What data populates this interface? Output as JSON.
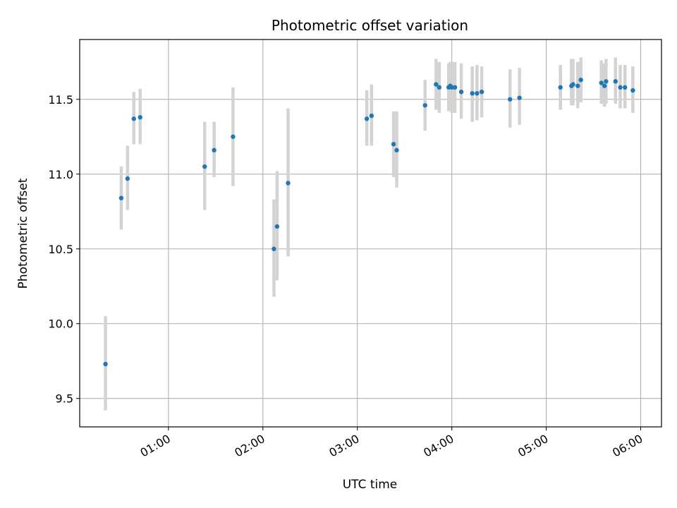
{
  "chart_data": {
    "type": "scatter",
    "title": "Photometric offset variation",
    "xlabel": "UTC time",
    "ylabel": "Photometric offset",
    "x_tick_labels": [
      "01:00",
      "02:00",
      "03:00",
      "04:00",
      "05:00",
      "06:00"
    ],
    "y_tick_labels": [
      "9.5",
      "10.0",
      "10.5",
      "11.0",
      "11.5"
    ],
    "x_ticks_hours": [
      1,
      2,
      3,
      4,
      5,
      6
    ],
    "y_ticks": [
      9.5,
      10.0,
      10.5,
      11.0,
      11.5
    ],
    "xlim_hours": [
      0.06,
      6.22
    ],
    "ylim": [
      9.31,
      11.9
    ],
    "grid": true,
    "marker_color": "#1f77b4",
    "errorbar_color": "#d3d3d3",
    "points": [
      {
        "t": "00:20",
        "y": 9.73,
        "lo": 9.42,
        "hi": 10.05
      },
      {
        "t": "00:30",
        "y": 10.84,
        "lo": 10.63,
        "hi": 11.05
      },
      {
        "t": "00:34",
        "y": 10.97,
        "lo": 10.76,
        "hi": 11.19
      },
      {
        "t": "00:38",
        "y": 11.37,
        "lo": 11.2,
        "hi": 11.55
      },
      {
        "t": "00:42",
        "y": 11.38,
        "lo": 11.2,
        "hi": 11.57
      },
      {
        "t": "01:23",
        "y": 11.05,
        "lo": 10.76,
        "hi": 11.35
      },
      {
        "t": "01:29",
        "y": 11.16,
        "lo": 10.98,
        "hi": 11.35
      },
      {
        "t": "01:41",
        "y": 11.25,
        "lo": 10.92,
        "hi": 11.58
      },
      {
        "t": "02:07",
        "y": 10.5,
        "lo": 10.18,
        "hi": 10.83
      },
      {
        "t": "02:09",
        "y": 10.65,
        "lo": 10.29,
        "hi": 11.02
      },
      {
        "t": "02:16",
        "y": 10.94,
        "lo": 10.45,
        "hi": 11.44
      },
      {
        "t": "03:06",
        "y": 11.37,
        "lo": 11.19,
        "hi": 11.56
      },
      {
        "t": "03:09",
        "y": 11.39,
        "lo": 11.19,
        "hi": 11.6
      },
      {
        "t": "03:23",
        "y": 11.2,
        "lo": 10.98,
        "hi": 11.42
      },
      {
        "t": "03:25",
        "y": 11.16,
        "lo": 10.91,
        "hi": 11.42
      },
      {
        "t": "03:43",
        "y": 11.46,
        "lo": 11.29,
        "hi": 11.63
      },
      {
        "t": "03:50",
        "y": 11.6,
        "lo": 11.43,
        "hi": 11.77
      },
      {
        "t": "03:52",
        "y": 11.58,
        "lo": 11.41,
        "hi": 11.75
      },
      {
        "t": "03:58",
        "y": 11.58,
        "lo": 11.42,
        "hi": 11.74
      },
      {
        "t": "03:59",
        "y": 11.59,
        "lo": 11.43,
        "hi": 11.75
      },
      {
        "t": "04:00",
        "y": 11.58,
        "lo": 11.41,
        "hi": 11.75
      },
      {
        "t": "04:02",
        "y": 11.58,
        "lo": 11.41,
        "hi": 11.75
      },
      {
        "t": "04:06",
        "y": 11.55,
        "lo": 11.37,
        "hi": 11.74
      },
      {
        "t": "04:13",
        "y": 11.54,
        "lo": 11.35,
        "hi": 11.72
      },
      {
        "t": "04:16",
        "y": 11.54,
        "lo": 11.36,
        "hi": 11.73
      },
      {
        "t": "04:19",
        "y": 11.55,
        "lo": 11.38,
        "hi": 11.72
      },
      {
        "t": "04:37",
        "y": 11.5,
        "lo": 11.31,
        "hi": 11.7
      },
      {
        "t": "04:43",
        "y": 11.51,
        "lo": 11.33,
        "hi": 11.71
      },
      {
        "t": "05:09",
        "y": 11.58,
        "lo": 11.43,
        "hi": 11.73
      },
      {
        "t": "05:16",
        "y": 11.59,
        "lo": 11.46,
        "hi": 11.77
      },
      {
        "t": "05:17",
        "y": 11.6,
        "lo": 11.46,
        "hi": 11.77
      },
      {
        "t": "05:20",
        "y": 11.59,
        "lo": 11.44,
        "hi": 11.75
      },
      {
        "t": "05:22",
        "y": 11.63,
        "lo": 11.48,
        "hi": 11.78
      },
      {
        "t": "05:35",
        "y": 11.61,
        "lo": 11.47,
        "hi": 11.76
      },
      {
        "t": "05:37",
        "y": 11.59,
        "lo": 11.45,
        "hi": 11.74
      },
      {
        "t": "05:38",
        "y": 11.62,
        "lo": 11.47,
        "hi": 11.77
      },
      {
        "t": "05:44",
        "y": 11.62,
        "lo": 11.47,
        "hi": 11.78
      },
      {
        "t": "05:47",
        "y": 11.58,
        "lo": 11.44,
        "hi": 11.73
      },
      {
        "t": "05:50",
        "y": 11.58,
        "lo": 11.44,
        "hi": 11.73
      },
      {
        "t": "05:55",
        "y": 11.56,
        "lo": 11.41,
        "hi": 11.72
      }
    ]
  }
}
